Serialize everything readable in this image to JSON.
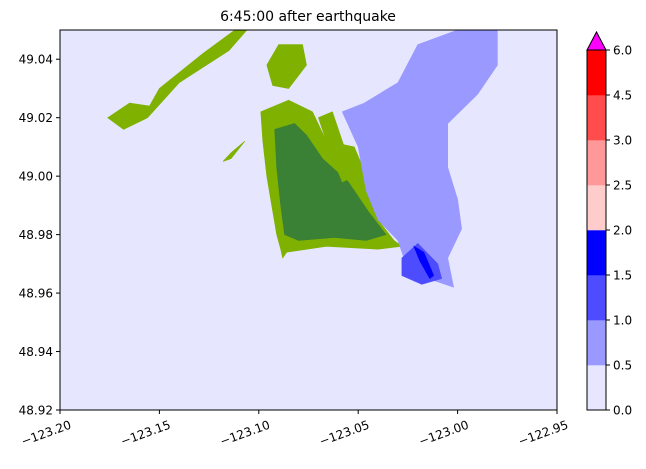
{
  "chart_data": {
    "type": "heatmap",
    "title": "6:45:00 after earthquake",
    "xlabel": "",
    "ylabel": "",
    "xlim": [
      -123.2,
      -122.95
    ],
    "ylim": [
      48.92,
      49.05
    ],
    "x_ticks": [
      -123.2,
      -123.15,
      -123.1,
      -123.05,
      -123.0,
      -122.95
    ],
    "x_tick_labels": [
      "−123.20",
      "−123.15",
      "−123.10",
      "−123.05",
      "−123.00",
      "−122.95"
    ],
    "y_ticks": [
      48.92,
      48.94,
      48.96,
      48.98,
      49.0,
      49.02,
      49.04
    ],
    "y_tick_labels": [
      "48.92",
      "48.94",
      "48.96",
      "48.98",
      "49.00",
      "49.02",
      "49.04"
    ],
    "background_water_color": "#e6e6ff",
    "land_colors": {
      "low": "#7fb100",
      "high": "#3a8035"
    },
    "colorbar": {
      "levels": [
        0.0,
        0.5,
        1.0,
        1.5,
        2.0,
        2.5,
        3.0,
        4.5,
        6.0
      ],
      "level_labels": [
        "0.0",
        "0.5",
        "1.0",
        "1.5",
        "2.0",
        "2.5",
        "3.0",
        "4.5",
        "6.0"
      ],
      "colors": [
        "#e6e6ff",
        "#9999ff",
        "#4d4dff",
        "#0000ff",
        "#ffcccc",
        "#ff9999",
        "#ff4d4d",
        "#ff0000"
      ],
      "extend_max_color": "#ff00ff"
    },
    "regions": [
      {
        "name": "land",
        "color": "#7fb100",
        "polygon": [
          [
            -123.099,
            49.022
          ],
          [
            -123.085,
            49.026
          ],
          [
            -123.073,
            49.022
          ],
          [
            -123.066,
            49.012
          ],
          [
            -123.052,
            49.01
          ],
          [
            -123.047,
            49.002
          ],
          [
            -123.045,
            48.994
          ],
          [
            -123.04,
            48.985
          ],
          [
            -123.032,
            48.978
          ],
          [
            -123.028,
            48.976
          ],
          [
            -123.04,
            48.975
          ],
          [
            -123.066,
            48.976
          ],
          [
            -123.086,
            48.974
          ],
          [
            -123.088,
            48.972
          ],
          [
            -123.089,
            48.975
          ],
          [
            -123.091,
            48.98
          ],
          [
            -123.093,
            48.988
          ],
          [
            -123.096,
            49.0
          ],
          [
            -123.098,
            49.012
          ]
        ]
      },
      {
        "name": "land",
        "color": "#3a8035",
        "polygon": [
          [
            -123.092,
            49.016
          ],
          [
            -123.082,
            49.018
          ],
          [
            -123.076,
            49.014
          ],
          [
            -123.068,
            49.006
          ],
          [
            -123.055,
            48.998
          ],
          [
            -123.045,
            48.988
          ],
          [
            -123.036,
            48.98
          ],
          [
            -123.046,
            48.978
          ],
          [
            -123.062,
            48.979
          ],
          [
            -123.08,
            48.978
          ],
          [
            -123.087,
            48.98
          ],
          [
            -123.089,
            48.99
          ],
          [
            -123.091,
            49.003
          ]
        ]
      },
      {
        "name": "land",
        "color": "#7fb100",
        "polygon": [
          [
            -123.09,
            49.045
          ],
          [
            -123.078,
            49.045
          ],
          [
            -123.076,
            49.038
          ],
          [
            -123.085,
            49.03
          ],
          [
            -123.093,
            49.031
          ],
          [
            -123.096,
            49.038
          ]
        ]
      },
      {
        "name": "land",
        "color": "#7fb100",
        "polygon": [
          [
            -123.176,
            49.02
          ],
          [
            -123.165,
            49.025
          ],
          [
            -123.155,
            49.024
          ],
          [
            -123.15,
            49.03
          ],
          [
            -123.128,
            49.042
          ],
          [
            -123.112,
            49.05
          ],
          [
            -123.106,
            49.05
          ],
          [
            -123.115,
            49.043
          ],
          [
            -123.14,
            49.032
          ],
          [
            -123.156,
            49.02
          ],
          [
            -123.168,
            49.016
          ]
        ]
      },
      {
        "name": "land",
        "color": "#7fb100",
        "polygon": [
          [
            -123.107,
            49.012
          ],
          [
            -123.114,
            49.008
          ],
          [
            -123.118,
            49.005
          ],
          [
            -123.114,
            49.006
          ]
        ]
      },
      {
        "name": "land",
        "color": "#7fb100",
        "polygon": [
          [
            -123.07,
            49.02
          ],
          [
            -123.063,
            49.022
          ],
          [
            -123.058,
            49.012
          ],
          [
            -123.052,
            49.0
          ],
          [
            -123.058,
            48.998
          ],
          [
            -123.064,
            49.008
          ]
        ]
      },
      {
        "name": "water",
        "color": "#9999ff",
        "polygon": [
          [
            -123.047,
            49.025
          ],
          [
            -123.03,
            49.032
          ],
          [
            -123.02,
            49.045
          ],
          [
            -123.0,
            49.05
          ],
          [
            -122.98,
            49.05
          ],
          [
            -122.98,
            49.038
          ],
          [
            -122.99,
            49.028
          ],
          [
            -123.005,
            49.018
          ],
          [
            -123.005,
            49.003
          ],
          [
            -123.0,
            48.992
          ],
          [
            -122.998,
            48.982
          ],
          [
            -123.005,
            48.972
          ],
          [
            -123.002,
            48.962
          ],
          [
            -123.015,
            48.965
          ],
          [
            -123.026,
            48.97
          ],
          [
            -123.03,
            48.978
          ],
          [
            -123.04,
            48.985
          ],
          [
            -123.046,
            48.995
          ],
          [
            -123.05,
            49.01
          ],
          [
            -123.058,
            49.022
          ]
        ]
      },
      {
        "name": "water",
        "color": "#4d4dff",
        "polygon": [
          [
            -123.028,
            48.972
          ],
          [
            -123.02,
            48.977
          ],
          [
            -123.01,
            48.97
          ],
          [
            -123.008,
            48.965
          ],
          [
            -123.018,
            48.963
          ],
          [
            -123.028,
            48.966
          ]
        ]
      },
      {
        "name": "water",
        "color": "#0000ff",
        "polygon": [
          [
            -123.022,
            48.976
          ],
          [
            -123.017,
            48.974
          ],
          [
            -123.012,
            48.966
          ],
          [
            -123.014,
            48.965
          ],
          [
            -123.019,
            48.971
          ]
        ]
      }
    ]
  }
}
